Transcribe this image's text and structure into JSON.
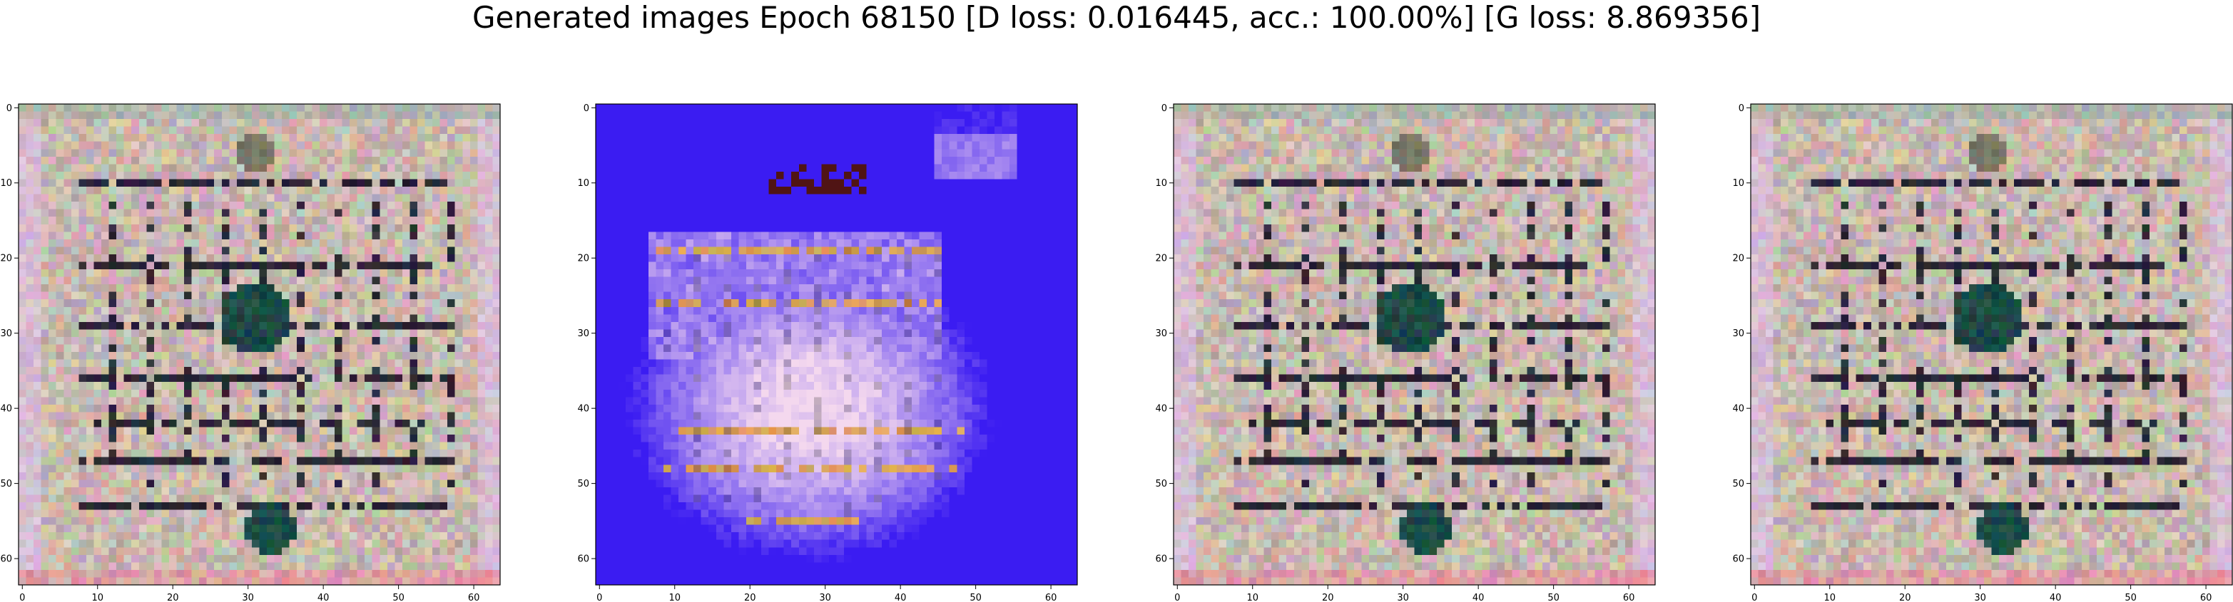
{
  "title": "Generated images Epoch 68150 [D loss: 0.016445, acc.: 100.00%] [G loss: 8.869356]",
  "panels": [
    {
      "name": "generated-image-1",
      "style": "grid",
      "x_ticks": [
        "0",
        "10",
        "20",
        "30",
        "40",
        "50",
        "60"
      ],
      "y_ticks": [
        "0",
        "10",
        "20",
        "30",
        "40",
        "50",
        "60"
      ],
      "colors": {
        "base": "#c9b8ae",
        "line": "#1b1626",
        "accent": "#1d4a44"
      }
    },
    {
      "name": "generated-image-2",
      "style": "blue",
      "x_ticks": [
        "0",
        "10",
        "20",
        "30",
        "40",
        "50",
        "60"
      ],
      "y_ticks": [
        "0",
        "10",
        "20",
        "30",
        "40",
        "50",
        "60"
      ],
      "colors": {
        "base": "#3b1cf2",
        "light": "#f4d8ee",
        "line": "#d9a15a"
      }
    },
    {
      "name": "generated-image-3",
      "style": "grid",
      "x_ticks": [
        "0",
        "10",
        "20",
        "30",
        "40",
        "50",
        "60"
      ],
      "y_ticks": [
        "0",
        "10",
        "20",
        "30",
        "40",
        "50",
        "60"
      ],
      "colors": {
        "base": "#c9b8ae",
        "line": "#1b1626",
        "accent": "#1d4a44"
      }
    },
    {
      "name": "generated-image-4",
      "style": "grid",
      "x_ticks": [
        "0",
        "10",
        "20",
        "30",
        "40",
        "50",
        "60"
      ],
      "y_ticks": [
        "0",
        "10",
        "20",
        "30",
        "40",
        "50",
        "60"
      ],
      "colors": {
        "base": "#c9b8ae",
        "line": "#1b1626",
        "accent": "#1d4a44"
      }
    }
  ]
}
